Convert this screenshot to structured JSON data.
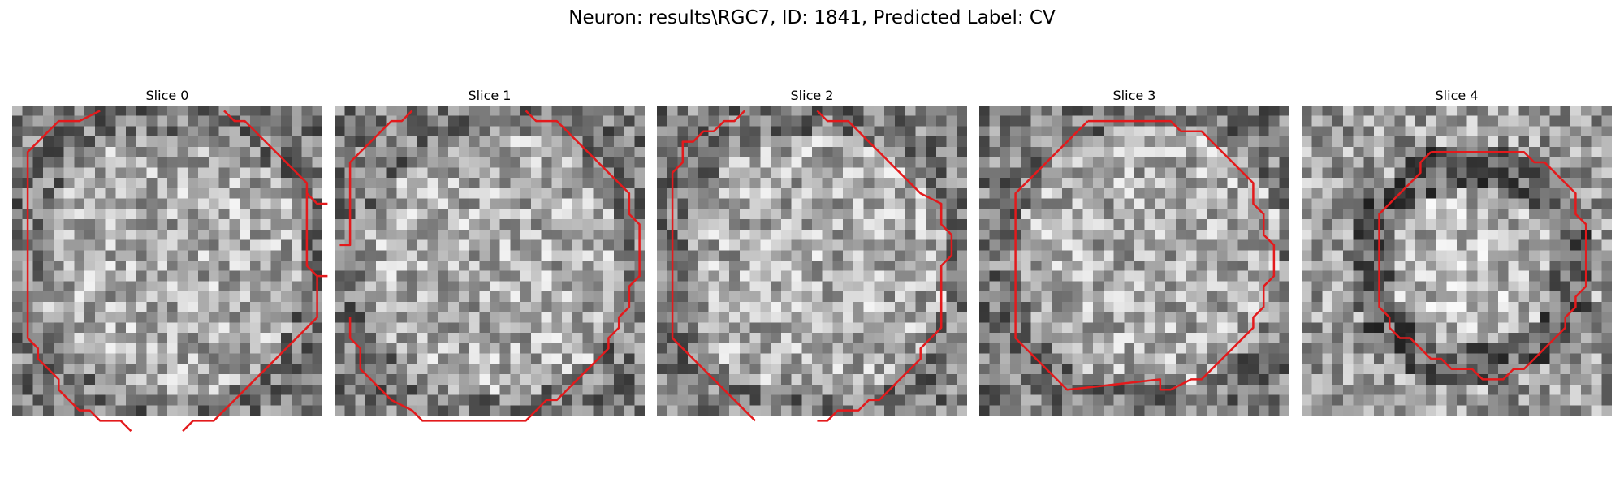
{
  "figure": {
    "title": "Neuron: results\\RGC7, ID: 1841, Predicted Label: CV",
    "contour_color": "#e31a1c",
    "colormap": "gray",
    "slices": [
      {
        "label": "Slice 0",
        "contour": [
          [
            8,
            0
          ],
          [
            6,
            1
          ],
          [
            4,
            1
          ],
          [
            3,
            2
          ],
          [
            2,
            3
          ],
          [
            1,
            4
          ],
          [
            1,
            5
          ],
          [
            1,
            6
          ],
          [
            1,
            7
          ],
          [
            1,
            8
          ],
          [
            1,
            9
          ],
          [
            1,
            10
          ],
          [
            1,
            11
          ],
          [
            1,
            12
          ],
          [
            1,
            13
          ],
          [
            1,
            14
          ],
          [
            1,
            15
          ],
          [
            1,
            16
          ],
          [
            1,
            17
          ],
          [
            1,
            18
          ],
          [
            1,
            19
          ],
          [
            1,
            20
          ],
          [
            1,
            21
          ],
          [
            1,
            22
          ],
          [
            2,
            23
          ],
          [
            2,
            24
          ],
          [
            3,
            25
          ],
          [
            4,
            26
          ],
          [
            4,
            27
          ],
          [
            5,
            28
          ],
          [
            6,
            29
          ],
          [
            7,
            29
          ],
          [
            8,
            30
          ],
          [
            10,
            30
          ],
          [
            11,
            31
          ]
        ],
        "contour2": [
          [
            16,
            31
          ],
          [
            17,
            30
          ],
          [
            19,
            30
          ],
          [
            20,
            29
          ],
          [
            21,
            28
          ],
          [
            22,
            27
          ],
          [
            23,
            26
          ],
          [
            24,
            25
          ],
          [
            25,
            24
          ],
          [
            26,
            23
          ],
          [
            27,
            22
          ],
          [
            28,
            21
          ],
          [
            29,
            20
          ],
          [
            29,
            19
          ],
          [
            29,
            18
          ],
          [
            29,
            17
          ],
          [
            29,
            16
          ],
          [
            30,
            16
          ]
        ],
        "contour3": [
          [
            20,
            0
          ],
          [
            21,
            1
          ],
          [
            22,
            1
          ],
          [
            23,
            2
          ],
          [
            24,
            3
          ],
          [
            25,
            4
          ],
          [
            26,
            5
          ],
          [
            27,
            6
          ],
          [
            28,
            7
          ],
          [
            28,
            8
          ],
          [
            28,
            9
          ],
          [
            28,
            10
          ],
          [
            28,
            11
          ],
          [
            28,
            12
          ],
          [
            28,
            13
          ],
          [
            28,
            14
          ],
          [
            28,
            15
          ],
          [
            29,
            16
          ]
        ],
        "contour4": [
          [
            20,
            0
          ],
          [
            30,
            0
          ]
        ],
        "contour5": [
          [
            28,
            8
          ],
          [
            29,
            9
          ],
          [
            30,
            9
          ]
        ]
      },
      {
        "label": "Slice 1",
        "contour": [
          [
            7,
            0
          ],
          [
            6,
            1
          ],
          [
            5,
            1
          ],
          [
            4,
            2
          ],
          [
            3,
            3
          ],
          [
            2,
            4
          ],
          [
            1,
            5
          ],
          [
            1,
            6
          ],
          [
            1,
            7
          ],
          [
            1,
            8
          ],
          [
            1,
            9
          ],
          [
            1,
            10
          ],
          [
            1,
            11
          ],
          [
            1,
            12
          ],
          [
            1,
            13
          ],
          [
            0,
            13
          ]
        ],
        "contour2": [
          [
            18,
            0
          ],
          [
            19,
            1
          ],
          [
            21,
            1
          ],
          [
            22,
            2
          ],
          [
            23,
            3
          ],
          [
            24,
            4
          ],
          [
            25,
            5
          ],
          [
            26,
            6
          ],
          [
            27,
            7
          ],
          [
            28,
            8
          ],
          [
            28,
            9
          ],
          [
            28,
            10
          ],
          [
            29,
            11
          ],
          [
            29,
            12
          ],
          [
            29,
            13
          ],
          [
            29,
            14
          ],
          [
            29,
            15
          ],
          [
            29,
            16
          ],
          [
            28,
            17
          ],
          [
            28,
            18
          ],
          [
            28,
            19
          ],
          [
            27,
            20
          ],
          [
            27,
            21
          ],
          [
            26,
            22
          ],
          [
            26,
            23
          ],
          [
            25,
            24
          ],
          [
            24,
            25
          ],
          [
            23,
            26
          ],
          [
            22,
            27
          ],
          [
            21,
            28
          ],
          [
            20,
            28
          ],
          [
            19,
            29
          ],
          [
            18,
            30
          ],
          [
            17,
            30
          ],
          [
            8,
            30
          ],
          [
            7,
            29
          ],
          [
            5,
            28
          ],
          [
            4,
            27
          ],
          [
            3,
            26
          ],
          [
            2,
            25
          ],
          [
            2,
            24
          ],
          [
            2,
            23
          ],
          [
            1,
            22
          ],
          [
            1,
            21
          ],
          [
            1,
            20
          ]
        ]
      },
      {
        "label": "Slice 2",
        "contour": [
          [
            8,
            0
          ],
          [
            7,
            1
          ],
          [
            6,
            1
          ],
          [
            5,
            2
          ],
          [
            4,
            2
          ],
          [
            3,
            3
          ],
          [
            2,
            3
          ],
          [
            2,
            4
          ],
          [
            2,
            5
          ],
          [
            1,
            6
          ],
          [
            1,
            7
          ],
          [
            1,
            8
          ],
          [
            1,
            9
          ],
          [
            1,
            10
          ],
          [
            1,
            11
          ],
          [
            1,
            12
          ],
          [
            1,
            13
          ],
          [
            1,
            14
          ],
          [
            1,
            15
          ],
          [
            1,
            16
          ],
          [
            1,
            17
          ],
          [
            1,
            18
          ],
          [
            1,
            19
          ],
          [
            1,
            20
          ],
          [
            1,
            21
          ],
          [
            1,
            22
          ],
          [
            2,
            23
          ],
          [
            3,
            24
          ],
          [
            4,
            25
          ],
          [
            5,
            26
          ],
          [
            6,
            27
          ],
          [
            7,
            28
          ],
          [
            8,
            29
          ],
          [
            9,
            30
          ]
        ],
        "contour2": [
          [
            15,
            0
          ],
          [
            16,
            1
          ],
          [
            18,
            1
          ],
          [
            19,
            2
          ],
          [
            20,
            3
          ],
          [
            21,
            4
          ],
          [
            22,
            5
          ],
          [
            23,
            6
          ],
          [
            24,
            7
          ],
          [
            25,
            8
          ],
          [
            27,
            9
          ],
          [
            27,
            10
          ],
          [
            27,
            11
          ],
          [
            28,
            12
          ],
          [
            28,
            13
          ],
          [
            28,
            14
          ],
          [
            27,
            15
          ],
          [
            27,
            16
          ],
          [
            27,
            17
          ],
          [
            27,
            18
          ],
          [
            27,
            19
          ],
          [
            27,
            20
          ],
          [
            27,
            21
          ],
          [
            26,
            22
          ],
          [
            25,
            23
          ],
          [
            25,
            24
          ],
          [
            24,
            25
          ],
          [
            23,
            26
          ],
          [
            22,
            27
          ],
          [
            21,
            28
          ],
          [
            20,
            28
          ],
          [
            19,
            29
          ],
          [
            17,
            29
          ],
          [
            16,
            30
          ],
          [
            15,
            30
          ]
        ]
      },
      {
        "label": "Slice 3",
        "contour": [
          [
            10,
            1
          ],
          [
            18,
            1
          ],
          [
            19,
            2
          ],
          [
            21,
            2
          ],
          [
            22,
            3
          ],
          [
            23,
            4
          ],
          [
            24,
            5
          ],
          [
            25,
            6
          ],
          [
            26,
            7
          ],
          [
            26,
            8
          ],
          [
            26,
            9
          ],
          [
            27,
            10
          ],
          [
            27,
            11
          ],
          [
            27,
            12
          ],
          [
            28,
            13
          ],
          [
            28,
            14
          ],
          [
            28,
            15
          ],
          [
            28,
            16
          ],
          [
            27,
            17
          ],
          [
            27,
            18
          ],
          [
            27,
            19
          ],
          [
            26,
            20
          ],
          [
            26,
            21
          ],
          [
            25,
            22
          ],
          [
            24,
            23
          ],
          [
            23,
            24
          ],
          [
            22,
            25
          ],
          [
            21,
            26
          ],
          [
            20,
            26
          ],
          [
            18,
            27
          ],
          [
            17,
            27
          ],
          [
            17,
            26
          ],
          [
            8,
            27
          ],
          [
            7,
            26
          ],
          [
            6,
            25
          ],
          [
            5,
            24
          ],
          [
            4,
            23
          ],
          [
            3,
            22
          ],
          [
            3,
            21
          ],
          [
            3,
            20
          ],
          [
            3,
            19
          ],
          [
            3,
            18
          ],
          [
            3,
            17
          ],
          [
            3,
            16
          ],
          [
            3,
            15
          ],
          [
            3,
            14
          ],
          [
            3,
            13
          ],
          [
            3,
            12
          ],
          [
            3,
            11
          ],
          [
            3,
            10
          ],
          [
            3,
            9
          ],
          [
            3,
            8
          ],
          [
            4,
            7
          ],
          [
            5,
            6
          ],
          [
            6,
            5
          ],
          [
            7,
            4
          ],
          [
            8,
            3
          ],
          [
            9,
            2
          ],
          [
            10,
            1
          ]
        ]
      },
      {
        "label": "Slice 4",
        "contour": [
          [
            12,
            4
          ],
          [
            21,
            4
          ],
          [
            22,
            5
          ],
          [
            23,
            5
          ],
          [
            24,
            6
          ],
          [
            25,
            7
          ],
          [
            26,
            8
          ],
          [
            26,
            9
          ],
          [
            26,
            10
          ],
          [
            27,
            11
          ],
          [
            27,
            12
          ],
          [
            27,
            13
          ],
          [
            27,
            14
          ],
          [
            27,
            15
          ],
          [
            27,
            16
          ],
          [
            27,
            17
          ],
          [
            26,
            18
          ],
          [
            26,
            19
          ],
          [
            25,
            20
          ],
          [
            25,
            21
          ],
          [
            24,
            22
          ],
          [
            23,
            23
          ],
          [
            22,
            24
          ],
          [
            21,
            25
          ],
          [
            20,
            25
          ],
          [
            19,
            26
          ],
          [
            17,
            26
          ],
          [
            16,
            25
          ],
          [
            14,
            25
          ],
          [
            13,
            24
          ],
          [
            12,
            24
          ],
          [
            11,
            23
          ],
          [
            10,
            22
          ],
          [
            9,
            22
          ],
          [
            8,
            21
          ],
          [
            8,
            20
          ],
          [
            7,
            19
          ],
          [
            7,
            18
          ],
          [
            7,
            17
          ],
          [
            7,
            16
          ],
          [
            7,
            15
          ],
          [
            7,
            14
          ],
          [
            7,
            13
          ],
          [
            7,
            12
          ],
          [
            7,
            11
          ],
          [
            7,
            10
          ],
          [
            8,
            9
          ],
          [
            9,
            8
          ],
          [
            10,
            7
          ],
          [
            11,
            6
          ],
          [
            11,
            5
          ],
          [
            12,
            4
          ]
        ]
      }
    ]
  }
}
